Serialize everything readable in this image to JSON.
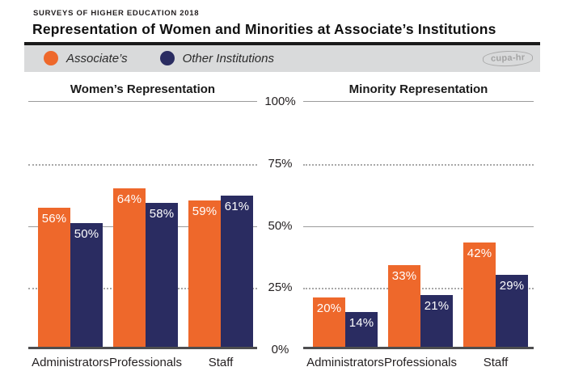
{
  "header": {
    "eyebrow": "SURVEYS OF HIGHER EDUCATION 2018",
    "title": "Representation of Women and Minorities at Associate’s Institutions"
  },
  "legend": {
    "items": [
      {
        "label": "Associate’s",
        "color": "#EE682B"
      },
      {
        "label": "Other Institutions",
        "color": "#2A2C61"
      }
    ],
    "logo_text": "cupa-hr"
  },
  "colors": {
    "associates": "#EE682B",
    "other": "#2A2C61",
    "gridline_solid": "#9B9B9B",
    "gridline_dotted": "#A8A8A8",
    "baseline": "#4D4D4F",
    "legend_band": "#D9DADB"
  },
  "axis": {
    "ticks": [
      "100%",
      "75%",
      "50%",
      "25%",
      "0%"
    ],
    "tick_values": [
      100,
      75,
      50,
      25,
      0
    ]
  },
  "chart_data": [
    {
      "type": "bar",
      "title": "Women’s Representation",
      "categories": [
        "Administrators",
        "Professionals",
        "Staff"
      ],
      "series": [
        {
          "name": "Associate’s",
          "color": "#EE682B",
          "values": [
            56,
            64,
            59
          ]
        },
        {
          "name": "Other Institutions",
          "color": "#2A2C61",
          "values": [
            50,
            58,
            61
          ]
        }
      ],
      "ylim": [
        0,
        100
      ],
      "yticks": [
        0,
        25,
        50,
        75,
        100
      ],
      "value_suffix": "%",
      "grid": "solid at 50/100, dotted at 25/75",
      "legend_position": "top"
    },
    {
      "type": "bar",
      "title": "Minority Representation",
      "categories": [
        "Administrators",
        "Professionals",
        "Staff"
      ],
      "series": [
        {
          "name": "Associate’s",
          "color": "#EE682B",
          "values": [
            20,
            33,
            42
          ]
        },
        {
          "name": "Other Institutions",
          "color": "#2A2C61",
          "values": [
            14,
            21,
            29
          ]
        }
      ],
      "ylim": [
        0,
        100
      ],
      "yticks": [
        0,
        25,
        50,
        75,
        100
      ],
      "value_suffix": "%",
      "grid": "solid at 50/100, dotted at 25/75",
      "legend_position": "top"
    }
  ]
}
